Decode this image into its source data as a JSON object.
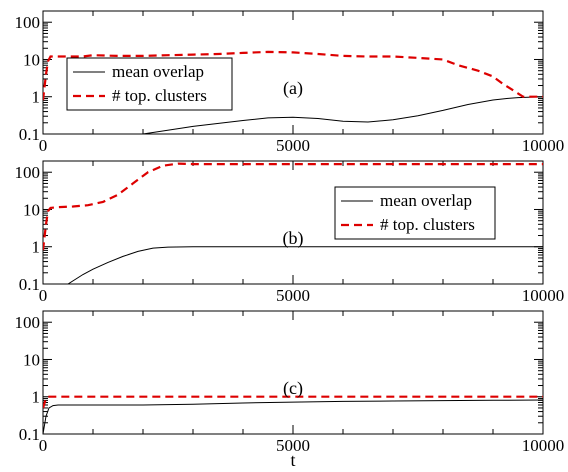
{
  "colors": {
    "background": "#ffffff",
    "axis": "#000000",
    "mean_overlap": "#000000",
    "top_clusters": "#dd0000"
  },
  "chart_data": [
    {
      "type": "line",
      "panel_label": "(a)",
      "xlabel": "",
      "ylabel": "",
      "xlim": [
        0,
        10000
      ],
      "ylim": [
        0.1,
        200
      ],
      "yscale": "log",
      "x_ticks": [
        0,
        5000,
        10000
      ],
      "y_ticks": [
        0.1,
        1,
        10,
        100
      ],
      "x_tick_labels": [
        "0",
        "5000",
        "10000"
      ],
      "y_tick_labels": [
        "0.1",
        "1",
        "10",
        "100"
      ],
      "grid": false,
      "legend_position": "left",
      "series": [
        {
          "name": "mean overlap",
          "style": "solid",
          "x": [
            2000,
            3000,
            4000,
            4500,
            5000,
            5500,
            6000,
            6500,
            7000,
            7500,
            8000,
            8500,
            9000,
            9300,
            9500,
            9700,
            10000
          ],
          "y": [
            0.1,
            0.16,
            0.23,
            0.27,
            0.28,
            0.26,
            0.22,
            0.21,
            0.24,
            0.31,
            0.43,
            0.62,
            0.82,
            0.9,
            0.95,
            0.97,
            1.0
          ]
        },
        {
          "name": "# top. clusters",
          "style": "dashed",
          "x": [
            0,
            60,
            100,
            150,
            300,
            500,
            800,
            1000,
            1500,
            2000,
            2500,
            3000,
            3500,
            4000,
            4500,
            5000,
            5500,
            6000,
            6500,
            7000,
            7500,
            8000,
            8300,
            8700,
            9000,
            9200,
            9400,
            9600,
            9800,
            10000
          ],
          "y": [
            0.8,
            4,
            9,
            12,
            12,
            12,
            12,
            13,
            12.5,
            12.5,
            13,
            13.5,
            14,
            15,
            16,
            15.5,
            14,
            12.5,
            12,
            12,
            11,
            10,
            7,
            5,
            3.5,
            2.2,
            1.5,
            1.0,
            1.0,
            1.0
          ]
        }
      ]
    },
    {
      "type": "line",
      "panel_label": "(b)",
      "xlabel": "",
      "ylabel": "",
      "xlim": [
        0,
        10000
      ],
      "ylim": [
        0.1,
        200
      ],
      "yscale": "log",
      "x_ticks": [
        0,
        5000,
        10000
      ],
      "y_ticks": [
        0.1,
        1,
        10,
        100
      ],
      "x_tick_labels": [
        "0",
        "5000",
        "10000"
      ],
      "y_tick_labels": [
        "0.1",
        "1",
        "10",
        "100"
      ],
      "grid": false,
      "legend_position": "right",
      "series": [
        {
          "name": "mean overlap",
          "style": "solid",
          "x": [
            500,
            800,
            1000,
            1300,
            1600,
            1900,
            2200,
            2500,
            3000,
            4000,
            6000,
            8000,
            10000
          ],
          "y": [
            0.1,
            0.18,
            0.25,
            0.38,
            0.55,
            0.75,
            0.92,
            0.98,
            1.0,
            1.0,
            1.0,
            1.0,
            1.0
          ]
        },
        {
          "name": "# top. clusters",
          "style": "dashed",
          "x": [
            0,
            60,
            100,
            150,
            300,
            600,
            900,
            1200,
            1500,
            1800,
            2100,
            2400,
            2700,
            3000,
            5000,
            7000,
            10000
          ],
          "y": [
            0.8,
            4,
            9,
            11,
            11.5,
            12,
            13,
            16,
            25,
            50,
            100,
            150,
            170,
            165,
            165,
            165,
            165
          ]
        }
      ]
    },
    {
      "type": "line",
      "panel_label": "(c)",
      "xlabel": "t",
      "ylabel": "",
      "xlim": [
        0,
        10000
      ],
      "ylim": [
        0.1,
        200
      ],
      "yscale": "log",
      "x_ticks": [
        0,
        5000,
        10000
      ],
      "y_ticks": [
        0.1,
        1,
        10,
        100
      ],
      "x_tick_labels": [
        "0",
        "5000",
        "10000"
      ],
      "y_tick_labels": [
        "0.1",
        "1",
        "10",
        "100"
      ],
      "grid": false,
      "legend_position": "right",
      "series": [
        {
          "name": "mean overlap",
          "style": "solid",
          "x": [
            0,
            60,
            120,
            200,
            300,
            500,
            1000,
            2000,
            3000,
            4000,
            5000,
            6000,
            7000,
            8000,
            9000,
            10000
          ],
          "y": [
            0.1,
            0.3,
            0.5,
            0.58,
            0.6,
            0.6,
            0.6,
            0.6,
            0.63,
            0.68,
            0.72,
            0.75,
            0.77,
            0.79,
            0.8,
            0.82
          ]
        },
        {
          "name": "# top. clusters",
          "style": "dashed",
          "x": [
            0,
            60,
            100,
            200,
            10000
          ],
          "y": [
            0.5,
            0.9,
            1.0,
            1.0,
            1.0
          ]
        }
      ]
    }
  ]
}
